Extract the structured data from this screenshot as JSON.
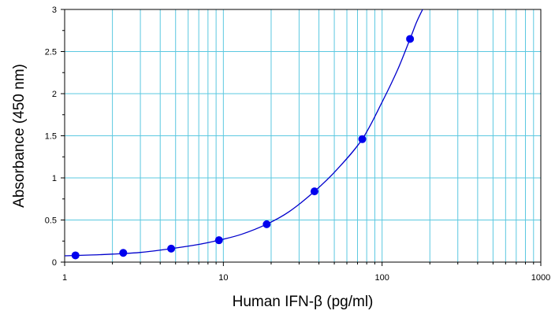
{
  "chart_data": {
    "type": "scatter",
    "xlabel": "Human IFN-β (pg/ml)",
    "ylabel": "Absorbance (450 nm)",
    "x_scale": "log",
    "xlim": [
      1,
      1000
    ],
    "ylim": [
      0,
      3
    ],
    "x_ticks": [
      1,
      10,
      100,
      1000
    ],
    "x_tick_labels": [
      "1",
      "10",
      "100",
      "1000"
    ],
    "y_ticks": [
      0,
      0.5,
      1,
      1.5,
      2,
      2.5,
      3
    ],
    "y_tick_labels": [
      "0",
      "0.5",
      "1",
      "1.5",
      "2",
      "2.5",
      "3"
    ],
    "grid": true,
    "series": [
      {
        "type": "scatter",
        "color": "#0000ee",
        "points": [
          {
            "x": 1.17,
            "y": 0.08
          },
          {
            "x": 2.34,
            "y": 0.11
          },
          {
            "x": 4.69,
            "y": 0.16
          },
          {
            "x": 9.38,
            "y": 0.26
          },
          {
            "x": 18.75,
            "y": 0.45
          },
          {
            "x": 37.5,
            "y": 0.84
          },
          {
            "x": 75,
            "y": 1.46
          },
          {
            "x": 150,
            "y": 2.65
          }
        ]
      },
      {
        "type": "fitted-curve",
        "color": "#0000cc",
        "points": [
          {
            "x": 1,
            "y": 0.075
          },
          {
            "x": 1.5,
            "y": 0.085
          },
          {
            "x": 2,
            "y": 0.095
          },
          {
            "x": 3,
            "y": 0.115
          },
          {
            "x": 4.69,
            "y": 0.16
          },
          {
            "x": 7,
            "y": 0.21
          },
          {
            "x": 9.38,
            "y": 0.26
          },
          {
            "x": 13,
            "y": 0.33
          },
          {
            "x": 18.75,
            "y": 0.45
          },
          {
            "x": 26,
            "y": 0.6
          },
          {
            "x": 37.5,
            "y": 0.84
          },
          {
            "x": 52,
            "y": 1.1
          },
          {
            "x": 75,
            "y": 1.46
          },
          {
            "x": 100,
            "y": 1.9
          },
          {
            "x": 125,
            "y": 2.28
          },
          {
            "x": 150,
            "y": 2.65
          },
          {
            "x": 165,
            "y": 2.85
          },
          {
            "x": 180,
            "y": 3.0
          }
        ]
      }
    ]
  }
}
